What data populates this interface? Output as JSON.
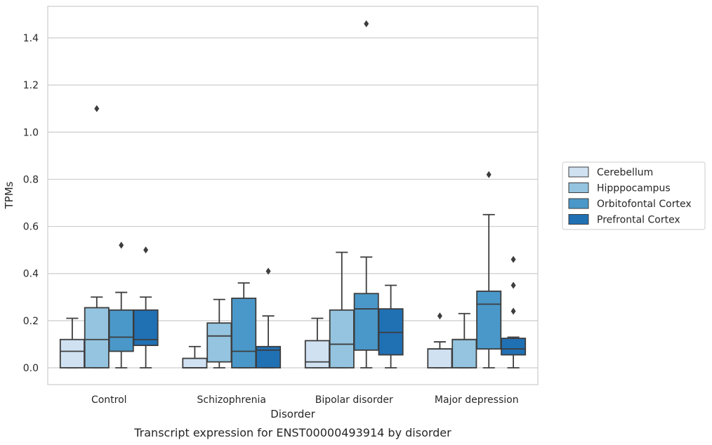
{
  "chart_data": {
    "type": "box",
    "title": "",
    "caption": "Transcript expression for ENST00000493914 by disorder",
    "xlabel": "Disorder",
    "ylabel": "TPMs",
    "ylim": [
      -0.07,
      1.54
    ],
    "yticks": [
      0.0,
      0.2,
      0.4,
      0.6,
      0.8,
      1.0,
      1.2,
      1.4
    ],
    "ytick_labels": [
      "0.0",
      "0.2",
      "0.4",
      "0.6",
      "0.8",
      "1.0",
      "1.2",
      "1.4"
    ],
    "grid": "horizontal",
    "legend_position": "right-outside",
    "categories": [
      "Control",
      "Schizophrenia",
      "Bipolar disorder",
      "Major depression"
    ],
    "series": [
      {
        "name": "Cerebellum",
        "color": "#d0e1f2",
        "boxes": [
          {
            "whislo": 0.0,
            "q1": 0.0,
            "med": 0.07,
            "q3": 0.12,
            "whishi": 0.21,
            "fliers": []
          },
          {
            "whislo": 0.0,
            "q1": 0.0,
            "med": 0.0,
            "q3": 0.04,
            "whishi": 0.09,
            "fliers": []
          },
          {
            "whislo": 0.0,
            "q1": 0.0,
            "med": 0.025,
            "q3": 0.115,
            "whishi": 0.21,
            "fliers": []
          },
          {
            "whislo": 0.0,
            "q1": 0.0,
            "med": 0.08,
            "q3": 0.08,
            "whishi": 0.11,
            "fliers": [
              0.22
            ]
          }
        ]
      },
      {
        "name": "Hipppocampus",
        "color": "#94c4df",
        "boxes": [
          {
            "whislo": 0.0,
            "q1": 0.0,
            "med": 0.12,
            "q3": 0.255,
            "whishi": 0.3,
            "fliers": [
              1.1
            ]
          },
          {
            "whislo": 0.0,
            "q1": 0.025,
            "med": 0.135,
            "q3": 0.19,
            "whishi": 0.29,
            "fliers": []
          },
          {
            "whislo": 0.0,
            "q1": 0.0,
            "med": 0.1,
            "q3": 0.245,
            "whishi": 0.49,
            "fliers": []
          },
          {
            "whislo": 0.0,
            "q1": 0.0,
            "med": 0.12,
            "q3": 0.12,
            "whishi": 0.23,
            "fliers": []
          }
        ]
      },
      {
        "name": "Orbitofontal Cortex",
        "color": "#4a98c9",
        "boxes": [
          {
            "whislo": 0.0,
            "q1": 0.07,
            "med": 0.13,
            "q3": 0.245,
            "whishi": 0.32,
            "fliers": [
              0.52
            ]
          },
          {
            "whislo": 0.0,
            "q1": 0.0,
            "med": 0.07,
            "q3": 0.295,
            "whishi": 0.36,
            "fliers": []
          },
          {
            "whislo": 0.0,
            "q1": 0.075,
            "med": 0.25,
            "q3": 0.315,
            "whishi": 0.47,
            "fliers": [
              1.46
            ]
          },
          {
            "whislo": 0.0,
            "q1": 0.08,
            "med": 0.27,
            "q3": 0.325,
            "whishi": 0.65,
            "fliers": [
              0.82
            ]
          }
        ]
      },
      {
        "name": "Prefrontal Cortex",
        "color": "#2070b4",
        "boxes": [
          {
            "whislo": 0.0,
            "q1": 0.095,
            "med": 0.12,
            "q3": 0.245,
            "whishi": 0.3,
            "fliers": [
              0.5
            ]
          },
          {
            "whislo": 0.0,
            "q1": 0.0,
            "med": 0.075,
            "q3": 0.09,
            "whishi": 0.22,
            "fliers": [
              0.41
            ]
          },
          {
            "whislo": 0.0,
            "q1": 0.055,
            "med": 0.15,
            "q3": 0.25,
            "whishi": 0.35,
            "fliers": []
          },
          {
            "whislo": 0.0,
            "q1": 0.055,
            "med": 0.08,
            "q3": 0.125,
            "whishi": 0.13,
            "fliers": [
              0.46,
              0.35,
              0.24
            ]
          }
        ]
      }
    ]
  }
}
